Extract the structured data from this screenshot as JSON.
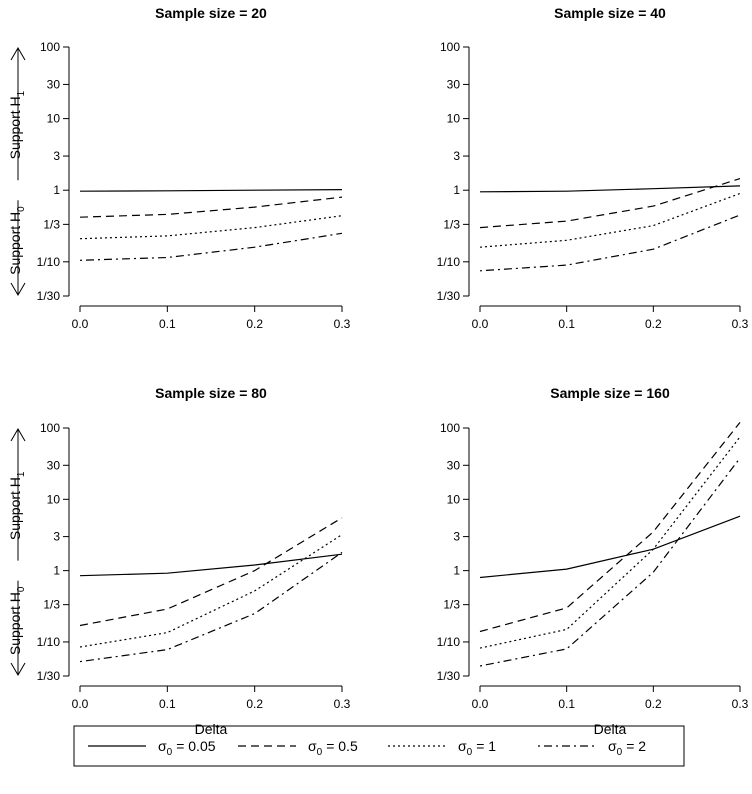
{
  "chart_data": {
    "type": "line",
    "y_scale": "log",
    "ylim": [
      0.0333,
      100
    ],
    "xlim": [
      0,
      0.3
    ],
    "x_ticks": [
      "0.0",
      "0.1",
      "0.2",
      "0.3"
    ],
    "x_tick_values": [
      0,
      0.1,
      0.2,
      0.3
    ],
    "y_ticks": [
      "100",
      "30",
      "10",
      "3",
      "1",
      "1/3",
      "1/10",
      "1/30"
    ],
    "y_tick_values": [
      100,
      30,
      10,
      3,
      1,
      0.3333,
      0.1,
      0.0333
    ],
    "xlabel": "Delta",
    "side_labels": {
      "upper": {
        "main": "Support H",
        "sub": "1"
      },
      "lower": {
        "main": "Support H",
        "sub": "0"
      }
    },
    "legend": [
      {
        "symbol": "σ",
        "sub": "0",
        "text": "= 0.05",
        "dash": "solid"
      },
      {
        "symbol": "σ",
        "sub": "0",
        "text": "= 0.5",
        "dash": "dashed"
      },
      {
        "symbol": "σ",
        "sub": "0",
        "text": "= 1",
        "dash": "dotted"
      },
      {
        "symbol": "σ",
        "sub": "0",
        "text": "= 2",
        "dash": "dotdash"
      }
    ],
    "panels": [
      {
        "title": "Sample size = 20",
        "x": [
          0,
          0.1,
          0.2,
          0.3
        ],
        "series": [
          {
            "name": "σ0 = 0.05",
            "values": [
              0.97,
              0.98,
              1.0,
              1.02
            ]
          },
          {
            "name": "σ0 = 0.5",
            "values": [
              0.42,
              0.46,
              0.58,
              0.8
            ]
          },
          {
            "name": "σ0 = 1",
            "values": [
              0.21,
              0.23,
              0.3,
              0.44
            ]
          },
          {
            "name": "σ0 = 2",
            "values": [
              0.105,
              0.115,
              0.16,
              0.25
            ]
          }
        ]
      },
      {
        "title": "Sample size = 40",
        "x": [
          0,
          0.1,
          0.2,
          0.3
        ],
        "series": [
          {
            "name": "σ0 = 0.05",
            "values": [
              0.95,
              0.97,
              1.05,
              1.15
            ]
          },
          {
            "name": "σ0 = 0.5",
            "values": [
              0.3,
              0.37,
              0.6,
              1.45
            ]
          },
          {
            "name": "σ0 = 1",
            "values": [
              0.16,
              0.2,
              0.32,
              0.9
            ]
          },
          {
            "name": "σ0 = 2",
            "values": [
              0.075,
              0.09,
              0.15,
              0.45
            ]
          }
        ]
      },
      {
        "title": "Sample size = 80",
        "x": [
          0,
          0.1,
          0.2,
          0.3
        ],
        "series": [
          {
            "name": "σ0 = 0.05",
            "values": [
              0.85,
              0.92,
              1.2,
              1.7
            ]
          },
          {
            "name": "σ0 = 0.5",
            "values": [
              0.17,
              0.29,
              1.0,
              5.5
            ]
          },
          {
            "name": "σ0 = 1",
            "values": [
              0.085,
              0.135,
              0.52,
              3.2
            ]
          },
          {
            "name": "σ0 = 2",
            "values": [
              0.053,
              0.078,
              0.25,
              1.8
            ]
          }
        ]
      },
      {
        "title": "Sample size = 160",
        "x": [
          0,
          0.1,
          0.2,
          0.3
        ],
        "series": [
          {
            "name": "σ0 = 0.05",
            "values": [
              0.8,
              1.05,
              2.0,
              5.8
            ]
          },
          {
            "name": "σ0 = 0.5",
            "values": [
              0.14,
              0.3,
              3.5,
              120
            ]
          },
          {
            "name": "σ0 = 1",
            "values": [
              0.082,
              0.15,
              2.0,
              75
            ]
          },
          {
            "name": "σ0 = 2",
            "values": [
              0.046,
              0.08,
              0.95,
              38
            ]
          }
        ]
      }
    ]
  }
}
